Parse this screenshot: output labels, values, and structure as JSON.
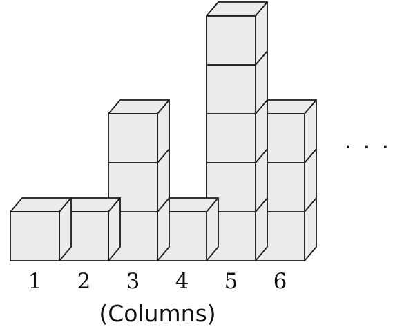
{
  "diagram": {
    "columns": [
      {
        "label": "1",
        "height": 1
      },
      {
        "label": "2",
        "height": 1
      },
      {
        "label": "3",
        "height": 3
      },
      {
        "label": "4",
        "height": 1
      },
      {
        "label": "5",
        "height": 5
      },
      {
        "label": "6",
        "height": 3
      }
    ],
    "axis_label": "(Columns)",
    "ellipsis": "· · ·",
    "cube_face_color": "#ebebeb",
    "edge_color": "#1a1a1a"
  }
}
